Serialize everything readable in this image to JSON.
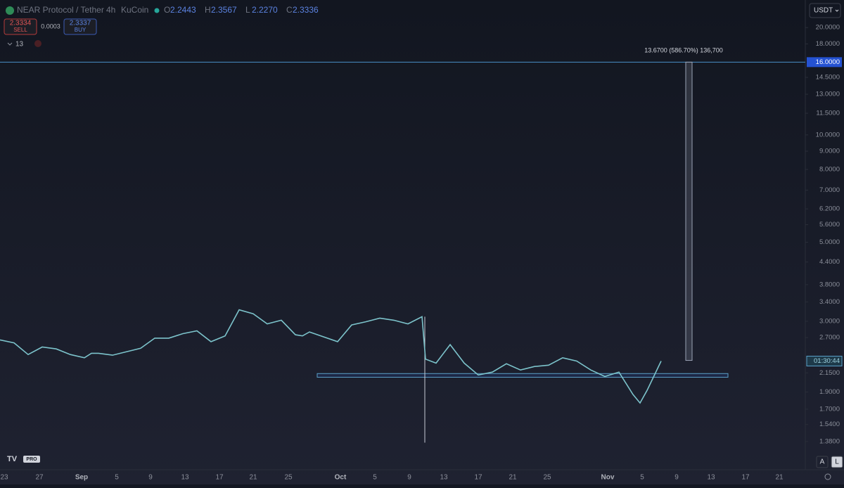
{
  "header": {
    "symbol": "NEAR Protocol / Tether",
    "interval": "4h",
    "exchange": "KuCoin",
    "ohlc": [
      {
        "key": "O",
        "value": "2.2443"
      },
      {
        "key": "H",
        "value": "2.3567"
      },
      {
        "key": "L",
        "value": "2.2270"
      },
      {
        "key": "C",
        "value": "2.3336"
      }
    ],
    "sell_price": "2.3334",
    "sell_label": "SELL",
    "spread": "0.0003",
    "buy_price": "2.3337",
    "buy_label": "BUY",
    "indicators": "13",
    "currency": "USDT"
  },
  "chart_data": {
    "type": "line",
    "log_scale": true,
    "color": "#7cc3cb",
    "ylim": [
      1.15,
      23.9
    ],
    "yticks": [
      {
        "value": 20,
        "label": "20.0000"
      },
      {
        "value": 18,
        "label": "18.0000"
      },
      {
        "value": 14.5,
        "label": "14.5000"
      },
      {
        "value": 13,
        "label": "13.0000"
      },
      {
        "value": 11.5,
        "label": "11.5000"
      },
      {
        "value": 10,
        "label": "10.0000"
      },
      {
        "value": 9,
        "label": "9.0000"
      },
      {
        "value": 8,
        "label": "8.0000"
      },
      {
        "value": 7,
        "label": "7.0000"
      },
      {
        "value": 6.2,
        "label": "6.2000"
      },
      {
        "value": 5.6,
        "label": "5.6000"
      },
      {
        "value": 5,
        "label": "5.0000"
      },
      {
        "value": 4.4,
        "label": "4.4000"
      },
      {
        "value": 3.8,
        "label": "3.8000"
      },
      {
        "value": 3.4,
        "label": "3.4000"
      },
      {
        "value": 3,
        "label": "3.0000"
      },
      {
        "value": 2.7,
        "label": "2.7000"
      },
      {
        "value": 2.15,
        "label": "2.1500"
      },
      {
        "value": 1.9,
        "label": "1.9000"
      },
      {
        "value": 1.7,
        "label": "1.7000"
      },
      {
        "value": 1.54,
        "label": "1.5400"
      },
      {
        "value": 1.38,
        "label": "1.3800"
      }
    ],
    "x_labels": [
      "23",
      "27",
      "Sep",
      "5",
      "9",
      "13",
      "17",
      "21",
      "25",
      "Oct",
      "5",
      "9",
      "13",
      "17",
      "21",
      "25",
      "Nov",
      "5",
      "9",
      "13",
      "17",
      "21"
    ],
    "series": [
      {
        "name": "NEAR/USDT",
        "values": [
          2.66,
          2.61,
          2.42,
          2.54,
          2.51,
          2.42,
          2.37,
          2.44,
          2.44,
          2.41,
          2.52,
          2.69,
          2.69,
          2.77,
          2.82,
          2.63,
          2.73,
          3.23,
          3.15,
          2.95,
          3.02,
          2.75,
          2.73,
          2.8,
          2.63,
          2.93,
          2.99,
          3.06,
          3.02,
          2.95,
          3.09,
          2.35,
          2.29,
          2.58,
          2.29,
          2.12,
          2.16,
          2.28,
          2.19,
          2.24,
          2.26,
          2.37,
          2.32,
          2.19,
          2.1,
          2.16,
          1.87,
          1.77,
          1.92,
          2.32
        ]
      }
    ],
    "wick_low": 1.37,
    "price_line": {
      "value": 16,
      "label": "16.0000"
    },
    "measure": {
      "from": 2.33,
      "to": 16,
      "label": "13.6700 (586.70%) 136,700"
    },
    "zone": {
      "low": 2.09,
      "high": 2.14
    },
    "countdown": "01:30:44",
    "scale_buttons": [
      "A",
      "L"
    ],
    "logo": "PRO"
  }
}
